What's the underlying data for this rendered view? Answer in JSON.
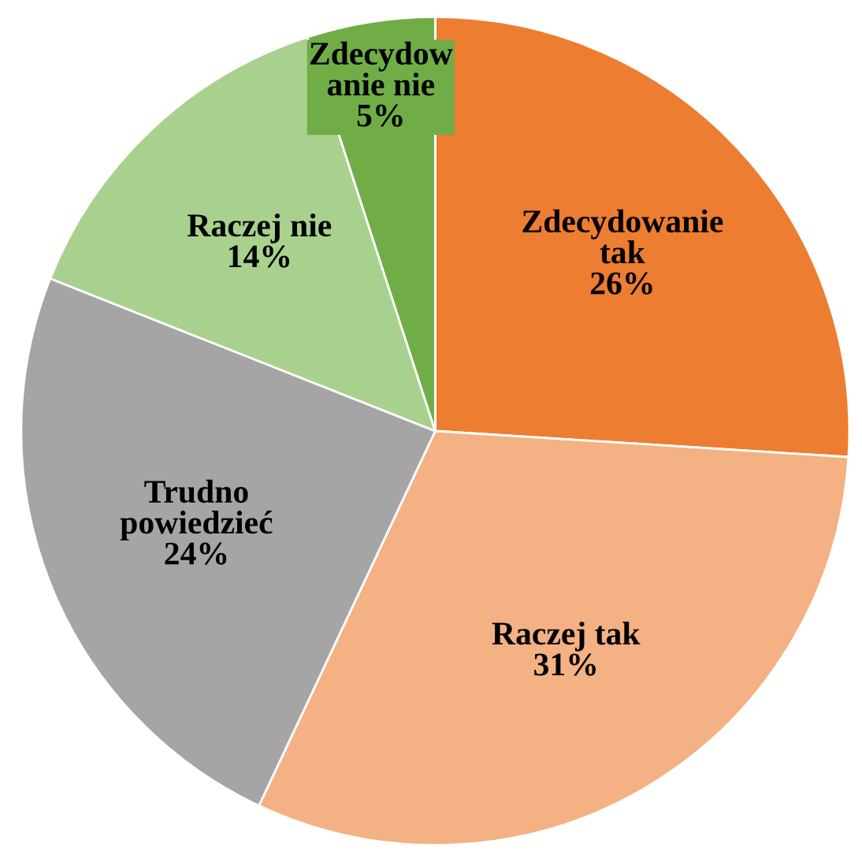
{
  "chart_data": {
    "type": "pie",
    "categories": [
      "Zdecydowanie\ntak",
      "Raczej tak",
      "Trudno\npowiedzieć",
      "Raczej nie",
      "Zdecydow\nanie nie"
    ],
    "values": [
      26,
      31,
      24,
      14,
      5
    ],
    "colors": [
      "#ed7d31",
      "#f4b183",
      "#a5a5a5",
      "#a9d18e",
      "#70ad47"
    ],
    "value_labels": [
      "26%",
      "31%",
      "24%",
      "14%",
      "5%"
    ]
  }
}
